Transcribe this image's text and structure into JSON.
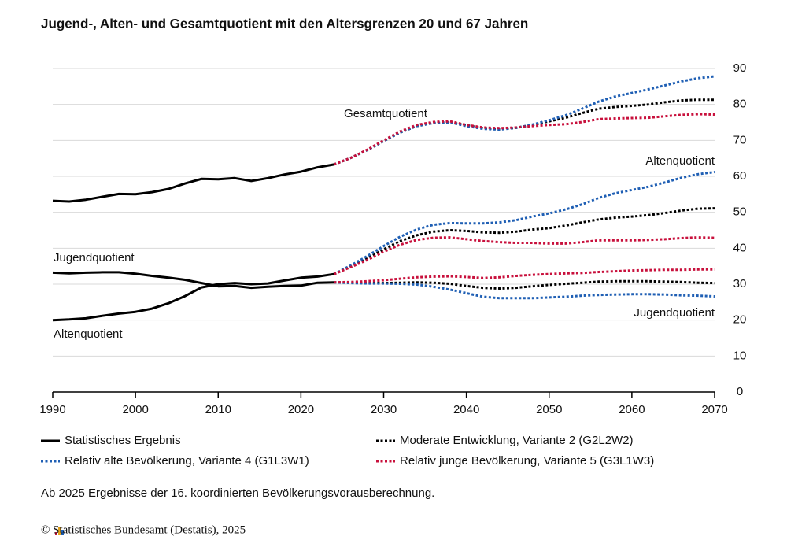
{
  "chart_data": {
    "type": "line",
    "title": "Jugend-, Alten- und Gesamtquotient mit den Altersgrenzen 20 und 67 Jahren",
    "note": "Ab 2025 Ergebnisse der 16. koordinierten Bevölkerungsvorausberechnung.",
    "source": "© Statistisches Bundesamt (Destatis), 2025",
    "xlim": [
      1990,
      2070
    ],
    "xticks": [
      1990,
      2000,
      2010,
      2020,
      2030,
      2040,
      2050,
      2060,
      2070
    ],
    "ylim": [
      0,
      90
    ],
    "yticks": [
      0,
      10,
      20,
      30,
      40,
      50,
      60,
      70,
      80,
      90
    ],
    "grid": true,
    "annotations": [
      "Gesamtquotient",
      "Altenquotient",
      "Jugendquotient",
      "Altenquotient",
      "Jugendquotient"
    ],
    "series": [
      {
        "name": "Statistisches Ergebnis",
        "color": "#000000",
        "dash": "solid",
        "x": [
          1990,
          1992,
          1994,
          1996,
          1998,
          2000,
          2002,
          2004,
          2006,
          2008,
          2010,
          2012,
          2014,
          2016,
          2018,
          2020,
          2022,
          2024
        ],
        "gesamt": [
          53.2,
          53,
          53.5,
          54.3,
          55.1,
          55,
          55.6,
          56.5,
          58,
          59.3,
          59.2,
          59.5,
          58.7,
          59.5,
          60.5,
          61.3,
          62.5,
          63.3
        ],
        "jugend": [
          33.2,
          33,
          33.2,
          33.3,
          33.3,
          32.9,
          32.3,
          31.8,
          31.2,
          30.3,
          29.4,
          29.5,
          29,
          29.3,
          29.5,
          29.6,
          30.4,
          30.5
        ],
        "alten": [
          20,
          20.2,
          20.5,
          21.2,
          21.8,
          22.3,
          23.2,
          24.7,
          26.7,
          29.1,
          30,
          30.3,
          30,
          30.2,
          31,
          31.8,
          32.1,
          32.8
        ]
      },
      {
        "name": "Moderate Entwicklung, Variante 2 (G2L2W2)",
        "color": "#000000",
        "dash": "dotted",
        "x": [
          2024,
          2026,
          2028,
          2030,
          2032,
          2034,
          2036,
          2038,
          2040,
          2042,
          2044,
          2046,
          2048,
          2050,
          2052,
          2054,
          2056,
          2058,
          2060,
          2062,
          2064,
          2066,
          2068,
          2070
        ],
        "gesamt": [
          63.3,
          65.1,
          67.3,
          69.8,
          72.2,
          74,
          74.8,
          75,
          74.2,
          73.4,
          73.1,
          73.5,
          74.3,
          75.3,
          76.3,
          77.6,
          78.8,
          79.3,
          79.6,
          80,
          80.6,
          81.1,
          81.3,
          81.3
        ],
        "jugend": [
          30.5,
          30.4,
          30.4,
          30.3,
          30.4,
          30.5,
          30.4,
          30.1,
          29.5,
          29,
          28.8,
          29,
          29.4,
          29.8,
          30.1,
          30.4,
          30.7,
          30.8,
          30.8,
          30.8,
          30.7,
          30.6,
          30.4,
          30.3
        ],
        "alten": [
          32.8,
          34.9,
          37.1,
          39.7,
          42,
          43.6,
          44.6,
          45,
          44.8,
          44.4,
          44.3,
          44.6,
          45.2,
          45.6,
          46.3,
          47.2,
          48,
          48.5,
          48.8,
          49.2,
          49.8,
          50.5,
          51,
          51.1
        ]
      },
      {
        "name": "Relativ alte Bevölkerung, Variante 4 (G1L3W1)",
        "color": "#1f5fb4",
        "dash": "dotted",
        "x": [
          2024,
          2026,
          2028,
          2030,
          2032,
          2034,
          2036,
          2038,
          2040,
          2042,
          2044,
          2046,
          2048,
          2050,
          2052,
          2054,
          2056,
          2058,
          2060,
          2062,
          2064,
          2066,
          2068,
          2070
        ],
        "gesamt": [
          63.3,
          65.1,
          67.3,
          69.8,
          72.2,
          74,
          74.8,
          75,
          74,
          73.2,
          73,
          73.5,
          74.4,
          75.6,
          77,
          78.8,
          80.8,
          82.2,
          83.2,
          84.2,
          85.3,
          86.4,
          87.3,
          87.8
        ],
        "jugend": [
          30.5,
          30.3,
          30.2,
          30.2,
          30.1,
          29.9,
          29.3,
          28.5,
          27.5,
          26.5,
          26.1,
          26.1,
          26.1,
          26.3,
          26.5,
          26.8,
          27,
          27.1,
          27.2,
          27.2,
          27.1,
          26.9,
          26.8,
          26.6
        ],
        "alten": [
          32.8,
          35.2,
          37.8,
          40.6,
          43.2,
          45.2,
          46.5,
          47,
          46.9,
          46.9,
          47.2,
          47.8,
          48.8,
          49.7,
          50.8,
          52.2,
          54,
          55.3,
          56.2,
          57.1,
          58.3,
          59.6,
          60.6,
          61.2
        ]
      },
      {
        "name": "Relativ junge Bevölkerung, Variante 5 (G3L1W3)",
        "color": "#c8103c",
        "dash": "dotted",
        "x": [
          2024,
          2026,
          2028,
          2030,
          2032,
          2034,
          2036,
          2038,
          2040,
          2042,
          2044,
          2046,
          2048,
          2050,
          2052,
          2054,
          2056,
          2058,
          2060,
          2062,
          2064,
          2066,
          2068,
          2070
        ],
        "gesamt": [
          63.3,
          65.1,
          67.4,
          70,
          72.5,
          74.3,
          75.1,
          75.3,
          74.3,
          73.6,
          73.4,
          73.6,
          74,
          74.3,
          74.5,
          75.1,
          75.9,
          76.1,
          76.2,
          76.3,
          76.7,
          77.1,
          77.3,
          77.2
        ],
        "jugend": [
          30.5,
          30.6,
          30.8,
          31.1,
          31.5,
          31.9,
          32.1,
          32.2,
          32,
          31.7,
          31.9,
          32.3,
          32.6,
          32.8,
          33,
          33.1,
          33.4,
          33.6,
          33.8,
          33.9,
          34,
          34,
          34.1,
          34.1
        ],
        "alten": [
          32.8,
          34.7,
          36.7,
          39,
          41,
          42.3,
          42.9,
          43,
          42.5,
          42,
          41.7,
          41.5,
          41.5,
          41.3,
          41.3,
          41.7,
          42.2,
          42.2,
          42.2,
          42.3,
          42.5,
          42.8,
          43,
          42.9
        ]
      }
    ]
  }
}
